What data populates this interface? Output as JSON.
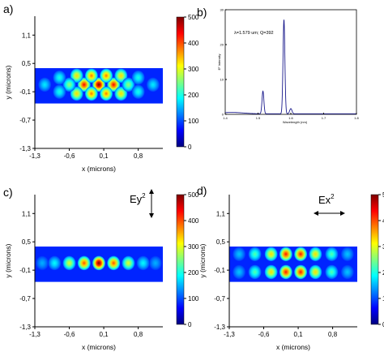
{
  "panel_labels": {
    "a": "a)",
    "b": "b)",
    "c": "c)",
    "d": "d)"
  },
  "colormap_stops": [
    "#00007f",
    "#0000ff",
    "#007fff",
    "#00ffff",
    "#7fff7f",
    "#ffff00",
    "#ff7f00",
    "#ff0000",
    "#7f0000"
  ],
  "chart_data": [
    {
      "id": "a",
      "type": "heatmap",
      "xlabel": "x  (microns)",
      "ylabel": "y  (microns)",
      "xticks": [
        "-1,3",
        "-0,6",
        "0,1",
        "0,8"
      ],
      "xtick_values": [
        -1.3,
        -0.6,
        0.1,
        0.8
      ],
      "yticks": [
        "1,1",
        "0,5",
        "-0,1",
        "-0,7",
        "-1,3"
      ],
      "ytick_values": [
        1.1,
        0.5,
        -0.1,
        -0.7,
        -1.3
      ],
      "xlim": [
        -1.3,
        1.3
      ],
      "ylim": [
        -1.3,
        1.5
      ],
      "band_y": [
        -0.35,
        0.4
      ],
      "colorbar_ticks": [
        0,
        100,
        200,
        300,
        400,
        500
      ],
      "crange": [
        0,
        500
      ],
      "mode": "Ey+Ex",
      "blobs": [
        {
          "x": 0.0,
          "y": 0.05,
          "v": 500
        },
        {
          "x": -0.3,
          "y": 0.05,
          "v": 440
        },
        {
          "x": 0.3,
          "y": 0.05,
          "v": 440
        },
        {
          "x": -0.15,
          "y": 0.24,
          "v": 380
        },
        {
          "x": 0.15,
          "y": 0.24,
          "v": 380
        },
        {
          "x": -0.15,
          "y": -0.14,
          "v": 380
        },
        {
          "x": 0.15,
          "y": -0.14,
          "v": 380
        },
        {
          "x": -0.45,
          "y": 0.24,
          "v": 330
        },
        {
          "x": 0.45,
          "y": 0.24,
          "v": 330
        },
        {
          "x": -0.45,
          "y": -0.14,
          "v": 330
        },
        {
          "x": 0.45,
          "y": -0.14,
          "v": 330
        },
        {
          "x": -0.6,
          "y": 0.05,
          "v": 260
        },
        {
          "x": 0.6,
          "y": 0.05,
          "v": 260
        },
        {
          "x": -0.8,
          "y": 0.2,
          "v": 200
        },
        {
          "x": 0.8,
          "y": 0.2,
          "v": 200
        },
        {
          "x": -0.8,
          "y": -0.1,
          "v": 200
        },
        {
          "x": 0.8,
          "y": -0.1,
          "v": 200
        },
        {
          "x": -1.1,
          "y": 0.05,
          "v": 180
        },
        {
          "x": 1.1,
          "y": 0.05,
          "v": 180
        }
      ]
    },
    {
      "id": "b",
      "type": "line",
      "xlabel": "Wavelength (nm)",
      "ylabel": "E² Intensity",
      "annotation": "λ=1.579 um; Q=392",
      "xticks": [
        "1.4",
        "1.5",
        "1.6",
        "1.7",
        "1.8"
      ],
      "xtick_values": [
        1.4,
        1.5,
        1.6,
        1.7,
        1.8
      ],
      "yticks": [
        "0",
        "10",
        "20",
        "30"
      ],
      "ytick_values": [
        0,
        10,
        20,
        30
      ],
      "xlim": [
        1.4,
        1.8
      ],
      "ylim": [
        0,
        30
      ],
      "peaks": [
        {
          "x": 1.579,
          "y": 27,
          "width": 0.004
        },
        {
          "x": 1.515,
          "y": 6.5,
          "width": 0.004
        },
        {
          "x": 1.6,
          "y": 1.5,
          "width": 0.005
        }
      ],
      "baseline": 0.4
    },
    {
      "id": "c",
      "type": "heatmap",
      "polarization": "Ey",
      "superscript": "2",
      "xlabel": "x  (microns)",
      "ylabel": "y  (microns)",
      "xticks": [
        "-1,3",
        "-0,6",
        "0,1",
        "0,8"
      ],
      "xtick_values": [
        -1.3,
        -0.6,
        0.1,
        0.8
      ],
      "yticks": [
        "1,1",
        "0,5",
        "-0,1",
        "-0,7",
        "-1,3"
      ],
      "ytick_values": [
        1.1,
        0.5,
        -0.1,
        -0.7,
        -1.3
      ],
      "xlim": [
        -1.3,
        1.3
      ],
      "ylim": [
        -1.3,
        1.5
      ],
      "band_y": [
        -0.35,
        0.4
      ],
      "colorbar_ticks": [
        0,
        100,
        200,
        300,
        400,
        500
      ],
      "crange": [
        0,
        500
      ],
      "blobs": [
        {
          "x": 0.0,
          "y": 0.05,
          "v": 500
        },
        {
          "x": -0.3,
          "y": 0.05,
          "v": 400
        },
        {
          "x": 0.3,
          "y": 0.05,
          "v": 400
        },
        {
          "x": -0.6,
          "y": 0.05,
          "v": 300
        },
        {
          "x": 0.6,
          "y": 0.05,
          "v": 300
        },
        {
          "x": -0.9,
          "y": 0.05,
          "v": 190
        },
        {
          "x": 0.9,
          "y": 0.05,
          "v": 190
        },
        {
          "x": -1.15,
          "y": 0.05,
          "v": 150
        },
        {
          "x": 1.15,
          "y": 0.05,
          "v": 150
        }
      ]
    },
    {
      "id": "d",
      "type": "heatmap",
      "polarization": "Ex",
      "superscript": "2",
      "xlabel": "x  (microns)",
      "ylabel": "y  (microns)",
      "xticks": [
        "-1,3",
        "-0,6",
        "0,1",
        "0,8"
      ],
      "xtick_values": [
        -1.3,
        -0.6,
        0.1,
        0.8
      ],
      "yticks": [
        "1,1",
        "0,5",
        "-0,1",
        "-0,7",
        "-1,3"
      ],
      "ytick_values": [
        1.1,
        0.5,
        -0.1,
        -0.7,
        -1.3
      ],
      "xlim": [
        -1.3,
        1.3
      ],
      "ylim": [
        -1.3,
        1.5
      ],
      "band_y": [
        -0.35,
        0.4
      ],
      "colorbar_ticks": [
        0,
        100,
        200,
        300,
        400,
        500
      ],
      "crange": [
        0,
        500
      ],
      "blobs": [
        {
          "x": -0.15,
          "y": 0.24,
          "v": 430
        },
        {
          "x": 0.15,
          "y": 0.24,
          "v": 430
        },
        {
          "x": -0.15,
          "y": -0.14,
          "v": 430
        },
        {
          "x": 0.15,
          "y": -0.14,
          "v": 430
        },
        {
          "x": -0.45,
          "y": 0.24,
          "v": 330
        },
        {
          "x": 0.45,
          "y": 0.24,
          "v": 330
        },
        {
          "x": -0.45,
          "y": -0.14,
          "v": 330
        },
        {
          "x": 0.45,
          "y": -0.14,
          "v": 330
        },
        {
          "x": -0.78,
          "y": 0.24,
          "v": 230
        },
        {
          "x": 0.78,
          "y": 0.24,
          "v": 230
        },
        {
          "x": -0.78,
          "y": -0.14,
          "v": 230
        },
        {
          "x": 0.78,
          "y": -0.14,
          "v": 230
        },
        {
          "x": -1.1,
          "y": 0.24,
          "v": 160
        },
        {
          "x": 1.1,
          "y": 0.24,
          "v": 160
        },
        {
          "x": -1.1,
          "y": -0.14,
          "v": 160
        },
        {
          "x": 1.1,
          "y": -0.14,
          "v": 160
        }
      ]
    }
  ]
}
